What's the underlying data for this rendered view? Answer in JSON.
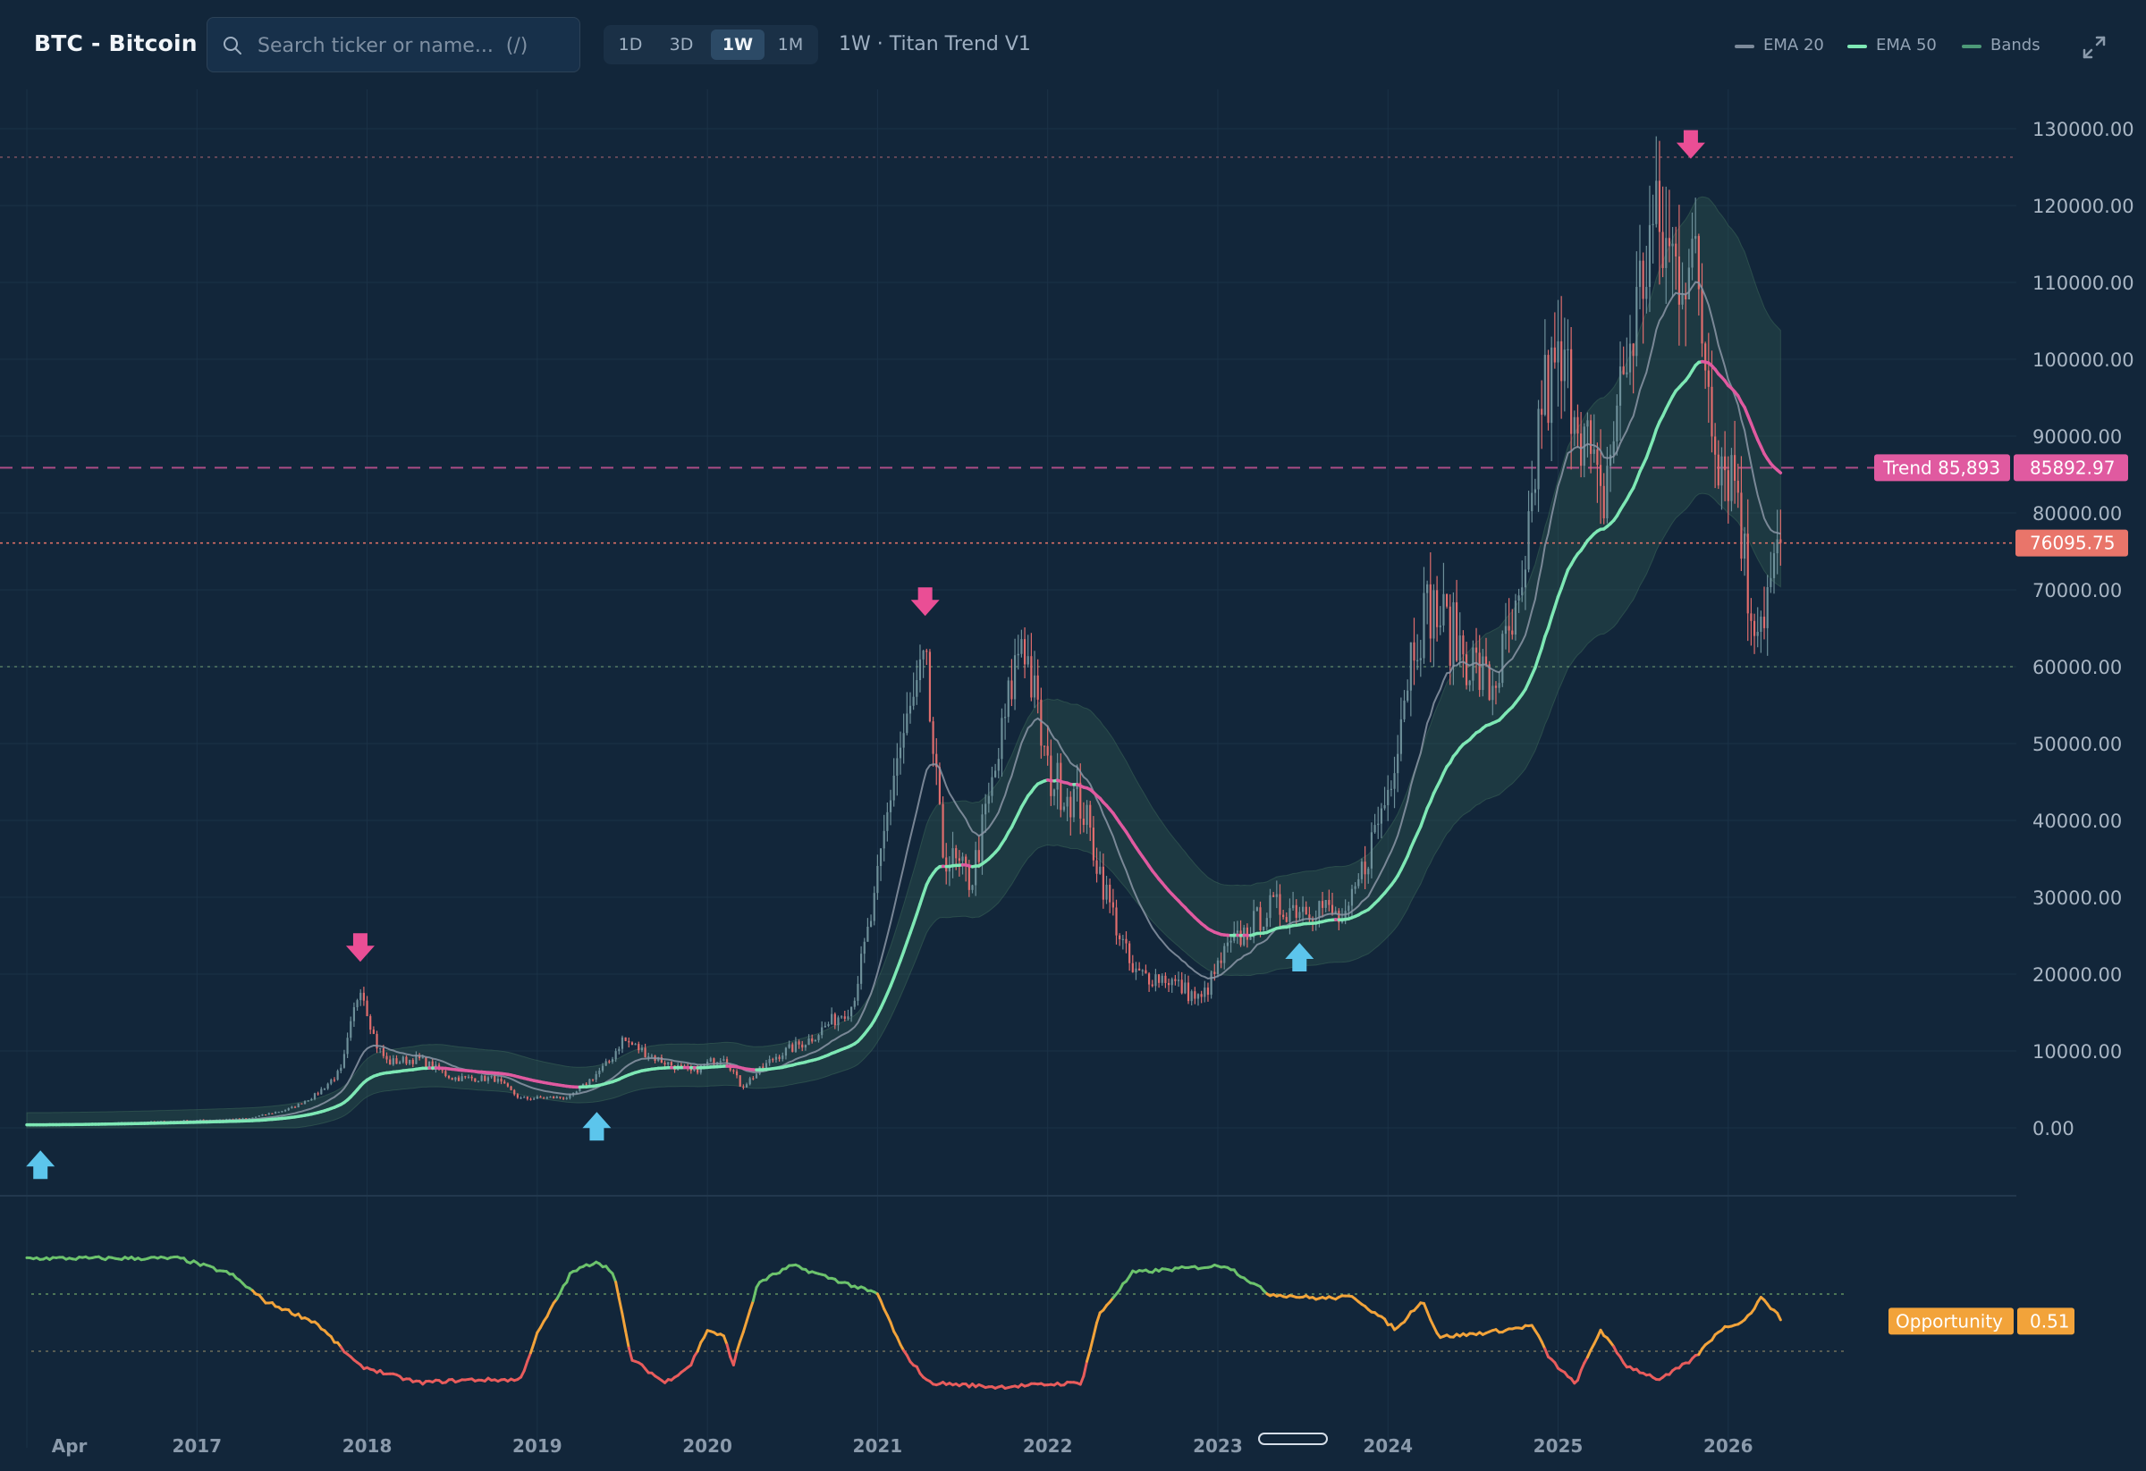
{
  "header": {
    "symbol_title": "BTC - Bitcoin",
    "search_placeholder": "Search ticker or name...  (/)",
    "timeframes": [
      "1D",
      "3D",
      "1W",
      "1M"
    ],
    "active_timeframe": "1W",
    "strategy_label": "1W · Titan Trend V1",
    "legend": [
      {
        "label": "EMA 20",
        "color": "#7c8a9a"
      },
      {
        "label": "EMA 50",
        "color": "#7ee8b5"
      },
      {
        "label": "Bands",
        "color": "#4d9a78"
      }
    ]
  },
  "colors": {
    "background": "#12263a",
    "up_candle": "#6d8f99",
    "down_candle": "#e06d6d",
    "ema50_bull": "#7ee8b5",
    "ema50_bear": "#e05aa0",
    "ema20": "#8b97a6",
    "band_fill": "#2f5a4e",
    "buy_arrow": "#5cc5ec",
    "sell_arrow": "#ea4e95",
    "price_line": "#e9756a",
    "trend_line": "#e05aa0",
    "osc_green": "#6cc36c",
    "osc_orange": "#f2a33a",
    "osc_red": "#e85c5c"
  },
  "chart_data": {
    "type": "candlestick",
    "interval": "weekly",
    "x_labels": [
      "Apr",
      "2017",
      "2018",
      "2019",
      "2020",
      "2021",
      "2022",
      "2023",
      "2024",
      "2025",
      "2026"
    ],
    "y_ticks": [
      "130000.00",
      "120000.00",
      "110000.00",
      "100000.00",
      "90000.00",
      "80000.00",
      "70000.00",
      "60000.00",
      "50000.00",
      "40000.00",
      "30000.00",
      "20000.00",
      "10000.00",
      "0.00"
    ],
    "ylim": [
      0,
      130000
    ],
    "close_anchors": [
      {
        "t": 2016.05,
        "v": 420
      },
      {
        "t": 2016.5,
        "v": 650
      },
      {
        "t": 2016.95,
        "v": 960
      },
      {
        "t": 2017.3,
        "v": 1200
      },
      {
        "t": 2017.55,
        "v": 2500
      },
      {
        "t": 2017.7,
        "v": 4300
      },
      {
        "t": 2017.85,
        "v": 7500
      },
      {
        "t": 2017.96,
        "v": 19000
      },
      {
        "t": 2018.05,
        "v": 11000
      },
      {
        "t": 2018.12,
        "v": 8500
      },
      {
        "t": 2018.3,
        "v": 9000
      },
      {
        "t": 2018.5,
        "v": 6500
      },
      {
        "t": 2018.75,
        "v": 6400
      },
      {
        "t": 2018.9,
        "v": 3800
      },
      {
        "t": 2019.2,
        "v": 4000
      },
      {
        "t": 2019.42,
        "v": 8500
      },
      {
        "t": 2019.5,
        "v": 11500
      },
      {
        "t": 2019.7,
        "v": 9000
      },
      {
        "t": 2019.9,
        "v": 7200
      },
      {
        "t": 2020.1,
        "v": 9500
      },
      {
        "t": 2020.2,
        "v": 5300
      },
      {
        "t": 2020.4,
        "v": 9300
      },
      {
        "t": 2020.6,
        "v": 11500
      },
      {
        "t": 2020.85,
        "v": 16000
      },
      {
        "t": 2020.98,
        "v": 29000
      },
      {
        "t": 2021.1,
        "v": 47000
      },
      {
        "t": 2021.28,
        "v": 60000
      },
      {
        "t": 2021.38,
        "v": 36000
      },
      {
        "t": 2021.55,
        "v": 32000
      },
      {
        "t": 2021.7,
        "v": 47000
      },
      {
        "t": 2021.85,
        "v": 65000
      },
      {
        "t": 2022.0,
        "v": 46000
      },
      {
        "t": 2022.2,
        "v": 42000
      },
      {
        "t": 2022.35,
        "v": 30000
      },
      {
        "t": 2022.5,
        "v": 20000
      },
      {
        "t": 2022.7,
        "v": 19500
      },
      {
        "t": 2022.9,
        "v": 16500
      },
      {
        "t": 2023.05,
        "v": 23000
      },
      {
        "t": 2023.3,
        "v": 28500
      },
      {
        "t": 2023.6,
        "v": 29000
      },
      {
        "t": 2023.75,
        "v": 26500
      },
      {
        "t": 2023.9,
        "v": 37000
      },
      {
        "t": 2024.0,
        "v": 44000
      },
      {
        "t": 2024.15,
        "v": 64000
      },
      {
        "t": 2024.25,
        "v": 68000
      },
      {
        "t": 2024.45,
        "v": 62000
      },
      {
        "t": 2024.6,
        "v": 57000
      },
      {
        "t": 2024.8,
        "v": 68000
      },
      {
        "t": 2024.9,
        "v": 95000
      },
      {
        "t": 2025.0,
        "v": 98000
      },
      {
        "t": 2025.1,
        "v": 96000
      },
      {
        "t": 2025.25,
        "v": 80000
      },
      {
        "t": 2025.35,
        "v": 94000
      },
      {
        "t": 2025.45,
        "v": 105000
      },
      {
        "t": 2025.55,
        "v": 117000
      },
      {
        "t": 2025.7,
        "v": 112000
      },
      {
        "t": 2025.78,
        "v": 115000
      },
      {
        "t": 2025.85,
        "v": 103000
      },
      {
        "t": 2025.95,
        "v": 88000
      },
      {
        "t": 2026.05,
        "v": 85000
      },
      {
        "t": 2026.12,
        "v": 68000
      },
      {
        "t": 2026.2,
        "v": 67000
      },
      {
        "t": 2026.32,
        "v": 76000
      }
    ],
    "sell_signals": [
      {
        "t": 2017.96,
        "v": 19500
      },
      {
        "t": 2021.28,
        "v": 64500
      },
      {
        "t": 2025.78,
        "v": 124000
      }
    ],
    "buy_signals": [
      {
        "t": 2016.08,
        "v": -2000
      },
      {
        "t": 2019.35,
        "v": 3000
      },
      {
        "t": 2023.48,
        "v": 25000
      }
    ],
    "last_price": 76095.75,
    "trend_level": 85892.97,
    "price_tag": "76095.75",
    "trend_tag_label": "Trend 85,893",
    "trend_tag_value": "85892.97",
    "horizontal_levels": [
      126300,
      60000
    ],
    "oscillator": {
      "name": "Opportunity",
      "value": "0.51",
      "ylim": [
        0,
        1
      ],
      "upper_level": 0.7,
      "lower_level": 0.3,
      "anchors": [
        {
          "t": 2016.0,
          "v": 0.95
        },
        {
          "t": 2016.9,
          "v": 0.95
        },
        {
          "t": 2017.2,
          "v": 0.84
        },
        {
          "t": 2017.4,
          "v": 0.65
        },
        {
          "t": 2017.7,
          "v": 0.5
        },
        {
          "t": 2017.95,
          "v": 0.2
        },
        {
          "t": 2018.3,
          "v": 0.08
        },
        {
          "t": 2018.6,
          "v": 0.1
        },
        {
          "t": 2018.9,
          "v": 0.1
        },
        {
          "t": 2019.0,
          "v": 0.42
        },
        {
          "t": 2019.2,
          "v": 0.85
        },
        {
          "t": 2019.35,
          "v": 0.93
        },
        {
          "t": 2019.45,
          "v": 0.85
        },
        {
          "t": 2019.55,
          "v": 0.25
        },
        {
          "t": 2019.75,
          "v": 0.08
        },
        {
          "t": 2019.9,
          "v": 0.2
        },
        {
          "t": 2020.0,
          "v": 0.45
        },
        {
          "t": 2020.1,
          "v": 0.4
        },
        {
          "t": 2020.15,
          "v": 0.2
        },
        {
          "t": 2020.3,
          "v": 0.78
        },
        {
          "t": 2020.5,
          "v": 0.9
        },
        {
          "t": 2020.8,
          "v": 0.78
        },
        {
          "t": 2021.0,
          "v": 0.7
        },
        {
          "t": 2021.15,
          "v": 0.3
        },
        {
          "t": 2021.3,
          "v": 0.08
        },
        {
          "t": 2021.7,
          "v": 0.05
        },
        {
          "t": 2022.2,
          "v": 0.08
        },
        {
          "t": 2022.3,
          "v": 0.55
        },
        {
          "t": 2022.5,
          "v": 0.85
        },
        {
          "t": 2022.8,
          "v": 0.88
        },
        {
          "t": 2023.05,
          "v": 0.9
        },
        {
          "t": 2023.3,
          "v": 0.7
        },
        {
          "t": 2023.6,
          "v": 0.67
        },
        {
          "t": 2023.8,
          "v": 0.68
        },
        {
          "t": 2024.05,
          "v": 0.45
        },
        {
          "t": 2024.2,
          "v": 0.66
        },
        {
          "t": 2024.3,
          "v": 0.4
        },
        {
          "t": 2024.5,
          "v": 0.42
        },
        {
          "t": 2024.7,
          "v": 0.45
        },
        {
          "t": 2024.85,
          "v": 0.48
        },
        {
          "t": 2024.95,
          "v": 0.25
        },
        {
          "t": 2025.1,
          "v": 0.07
        },
        {
          "t": 2025.25,
          "v": 0.45
        },
        {
          "t": 2025.4,
          "v": 0.2
        },
        {
          "t": 2025.6,
          "v": 0.1
        },
        {
          "t": 2025.8,
          "v": 0.25
        },
        {
          "t": 2025.95,
          "v": 0.45
        },
        {
          "t": 2026.1,
          "v": 0.52
        },
        {
          "t": 2026.2,
          "v": 0.68
        },
        {
          "t": 2026.32,
          "v": 0.51
        }
      ]
    }
  }
}
